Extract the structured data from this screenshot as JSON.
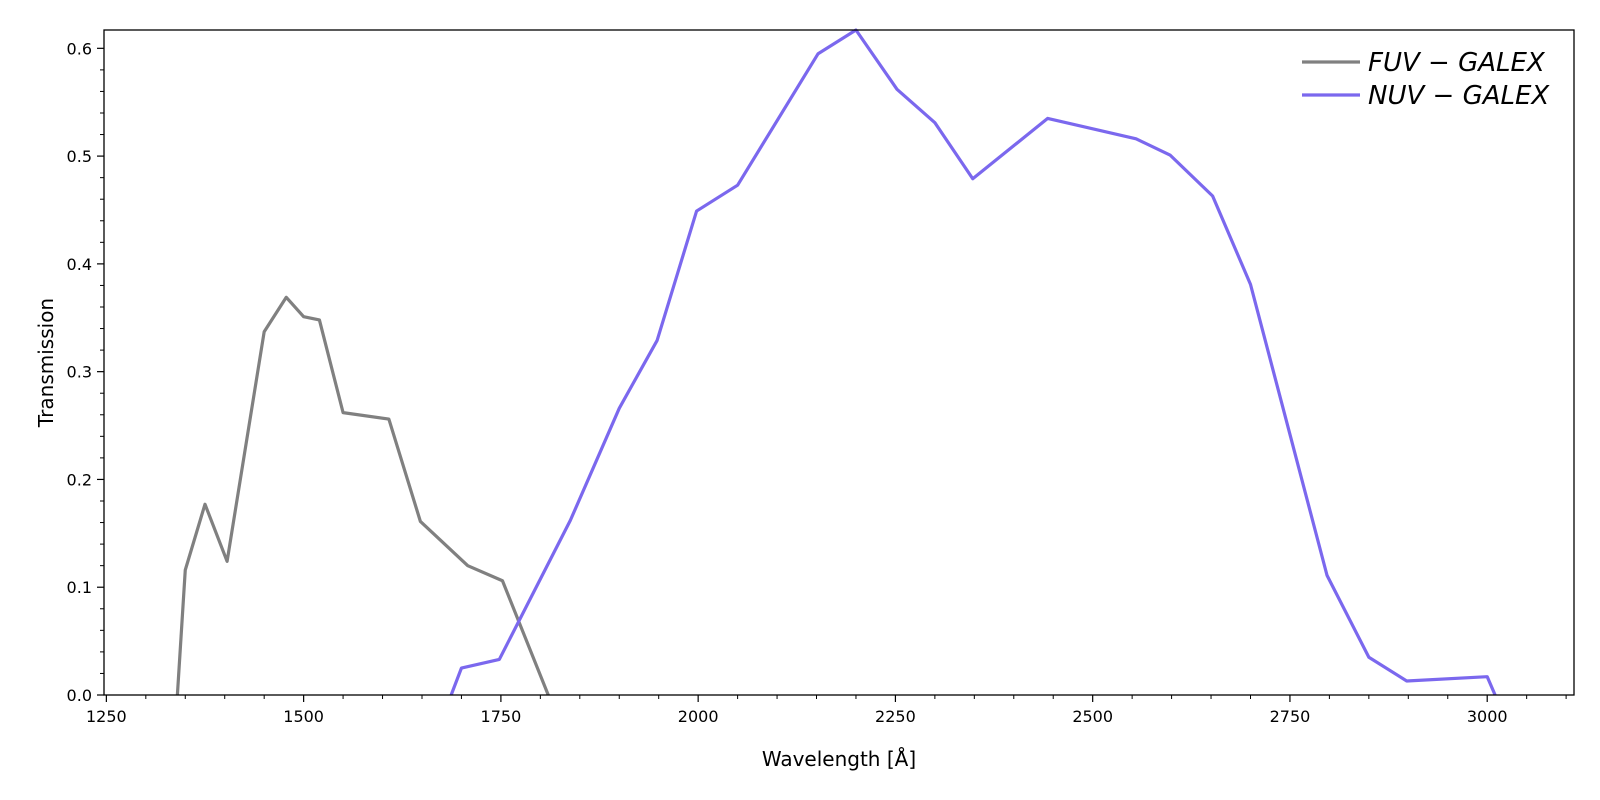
{
  "chart_data": {
    "type": "line",
    "xlabel": "Wavelength [Å]",
    "ylabel": "Transmission",
    "xlim": [
      1247,
      3110
    ],
    "ylim": [
      0.0,
      0.617
    ],
    "xticks": [
      1250,
      1500,
      1750,
      2000,
      2250,
      2500,
      2750,
      3000
    ],
    "xtick_labels": [
      "1250",
      "1500",
      "1750",
      "2000",
      "2250",
      "2500",
      "2750",
      "3000"
    ],
    "yticks": [
      0.0,
      0.1,
      0.2,
      0.3,
      0.4,
      0.5,
      0.6
    ],
    "ytick_labels": [
      "0.0",
      "0.1",
      "0.2",
      "0.3",
      "0.4",
      "0.5",
      "0.6"
    ],
    "x_minor_step": 50,
    "y_minor_step": 0.02,
    "grid": false,
    "legend_position": "top-right",
    "series": [
      {
        "name": "FUV − GALEX",
        "color": "#808080",
        "x": [
          1340,
          1350,
          1375,
          1403,
          1450,
          1478,
          1500,
          1520,
          1550,
          1608,
          1648,
          1708,
          1752,
          1810
        ],
        "y": [
          0.0,
          0.116,
          0.177,
          0.124,
          0.337,
          0.369,
          0.351,
          0.348,
          0.262,
          0.256,
          0.161,
          0.12,
          0.106,
          0.0
        ]
      },
      {
        "name": "NUV − GALEX",
        "color": "#7b68ee",
        "x": [
          1687,
          1700,
          1748,
          1838,
          1900,
          1948,
          1998,
          2050,
          2152,
          2200,
          2252,
          2300,
          2348,
          2443,
          2555,
          2598,
          2652,
          2700,
          2797,
          2850,
          2898,
          3000,
          3010
        ],
        "y": [
          0.0,
          0.025,
          0.033,
          0.162,
          0.266,
          0.329,
          0.449,
          0.473,
          0.595,
          0.617,
          0.562,
          0.531,
          0.479,
          0.535,
          0.516,
          0.501,
          0.463,
          0.381,
          0.111,
          0.035,
          0.013,
          0.017,
          0.0
        ]
      }
    ]
  }
}
